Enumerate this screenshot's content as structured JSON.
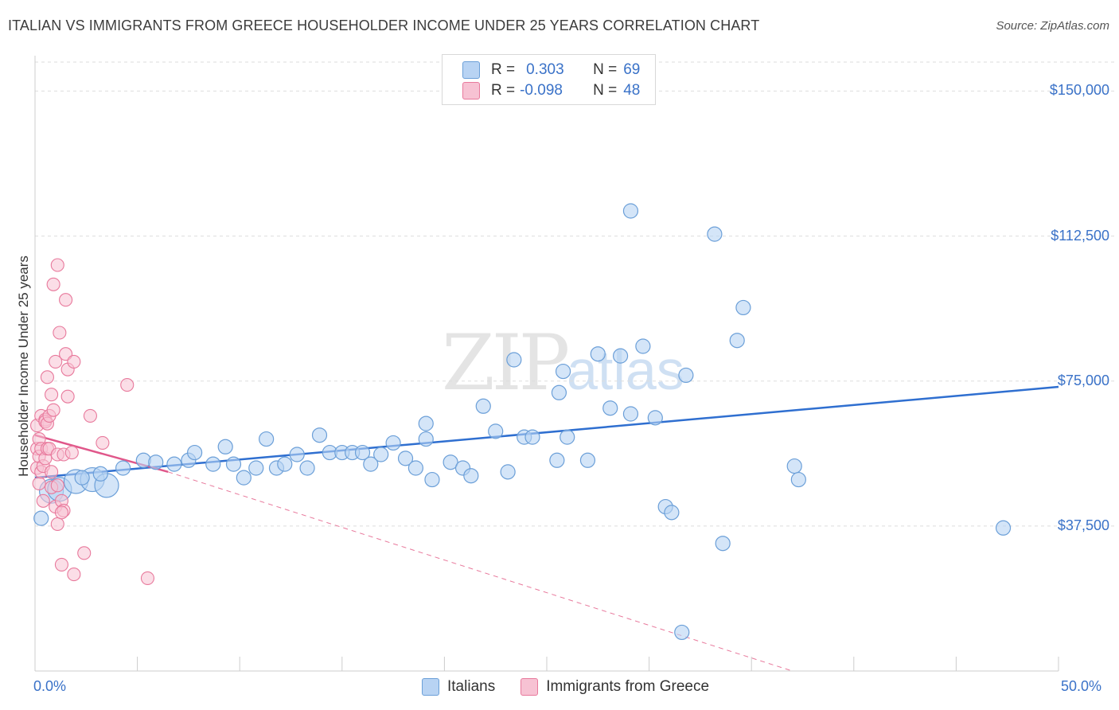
{
  "header": {
    "title": "ITALIAN VS IMMIGRANTS FROM GREECE HOUSEHOLDER INCOME UNDER 25 YEARS CORRELATION CHART",
    "source": "Source: ZipAtlas.com"
  },
  "watermark": {
    "zip": "ZIP",
    "atlas": "atlas"
  },
  "legend": {
    "r_label": "R =",
    "n_label": "N =",
    "italians": {
      "r": "0.303",
      "n": "69"
    },
    "greece": {
      "r": "-0.098",
      "n": "48"
    }
  },
  "colors": {
    "blue_fill": "#b8d3f3",
    "blue_stroke": "#6b9fd8",
    "blue_line": "#2f6fd0",
    "pink_fill": "#f7c2d3",
    "pink_stroke": "#e8799c",
    "pink_line": "#e0578a",
    "axis_text": "#3a72c8",
    "grid": "#dddddd"
  },
  "chart_data": {
    "type": "scatter",
    "title": "ITALIAN VS IMMIGRANTS FROM GREECE HOUSEHOLDER INCOME UNDER 25 YEARS CORRELATION CHART",
    "xlabel": "",
    "ylabel": "Householder Income Under 25 years",
    "xlim": [
      0,
      50
    ],
    "ylim": [
      0,
      157500
    ],
    "x_tick_labels": [
      "0.0%",
      "50.0%"
    ],
    "y_ticks": [
      37500,
      75000,
      112500,
      150000
    ],
    "y_tick_labels": [
      "$37,500",
      "$75,000",
      "$112,500",
      "$150,000"
    ],
    "grid": true,
    "legend_position": "bottom-center",
    "series": [
      {
        "name": "Italians",
        "color": "#6b9fd8",
        "trend": {
          "x": [
            0,
            50
          ],
          "y": [
            50000,
            73500
          ],
          "style": "solid"
        },
        "points": [
          {
            "x": 0.3,
            "y": 39500,
            "s": 1
          },
          {
            "x": 0.8,
            "y": 46500,
            "s": 2
          },
          {
            "x": 1.2,
            "y": 47000,
            "s": 2
          },
          {
            "x": 2.0,
            "y": 49000,
            "s": 2
          },
          {
            "x": 2.8,
            "y": 49500,
            "s": 2
          },
          {
            "x": 3.5,
            "y": 48000,
            "s": 2
          },
          {
            "x": 4.3,
            "y": 52500,
            "s": 1
          },
          {
            "x": 5.3,
            "y": 54500,
            "s": 1
          },
          {
            "x": 5.9,
            "y": 54000,
            "s": 1
          },
          {
            "x": 6.8,
            "y": 53500,
            "s": 1
          },
          {
            "x": 7.5,
            "y": 54500,
            "s": 1
          },
          {
            "x": 7.8,
            "y": 56500,
            "s": 1
          },
          {
            "x": 8.7,
            "y": 53500,
            "s": 1
          },
          {
            "x": 9.3,
            "y": 58000,
            "s": 1
          },
          {
            "x": 9.7,
            "y": 53500,
            "s": 1
          },
          {
            "x": 10.2,
            "y": 50000,
            "s": 1
          },
          {
            "x": 10.8,
            "y": 52500,
            "s": 1
          },
          {
            "x": 11.3,
            "y": 60000,
            "s": 1
          },
          {
            "x": 11.8,
            "y": 52500,
            "s": 1
          },
          {
            "x": 12.2,
            "y": 53500,
            "s": 1
          },
          {
            "x": 12.8,
            "y": 56000,
            "s": 1
          },
          {
            "x": 13.3,
            "y": 52500,
            "s": 1
          },
          {
            "x": 13.9,
            "y": 61000,
            "s": 1
          },
          {
            "x": 14.4,
            "y": 56500,
            "s": 1
          },
          {
            "x": 15.0,
            "y": 56500,
            "s": 1
          },
          {
            "x": 15.5,
            "y": 56500,
            "s": 1
          },
          {
            "x": 16.0,
            "y": 56500,
            "s": 1
          },
          {
            "x": 16.4,
            "y": 53500,
            "s": 1
          },
          {
            "x": 16.9,
            "y": 56000,
            "s": 1
          },
          {
            "x": 17.5,
            "y": 59000,
            "s": 1
          },
          {
            "x": 18.1,
            "y": 55000,
            "s": 1
          },
          {
            "x": 18.6,
            "y": 52500,
            "s": 1
          },
          {
            "x": 19.1,
            "y": 60000,
            "s": 1
          },
          {
            "x": 19.1,
            "y": 64000,
            "s": 1
          },
          {
            "x": 19.4,
            "y": 49500,
            "s": 1
          },
          {
            "x": 20.3,
            "y": 54000,
            "s": 1
          },
          {
            "x": 20.9,
            "y": 52500,
            "s": 1
          },
          {
            "x": 21.3,
            "y": 50500,
            "s": 1
          },
          {
            "x": 21.9,
            "y": 68500,
            "s": 1
          },
          {
            "x": 22.5,
            "y": 62000,
            "s": 1
          },
          {
            "x": 23.1,
            "y": 51500,
            "s": 1
          },
          {
            "x": 23.4,
            "y": 80500,
            "s": 1
          },
          {
            "x": 23.9,
            "y": 60500,
            "s": 1
          },
          {
            "x": 24.3,
            "y": 60500,
            "s": 1
          },
          {
            "x": 25.8,
            "y": 77500,
            "s": 1
          },
          {
            "x": 25.6,
            "y": 72000,
            "s": 1
          },
          {
            "x": 25.5,
            "y": 54500,
            "s": 1
          },
          {
            "x": 26.0,
            "y": 60500,
            "s": 1
          },
          {
            "x": 27.0,
            "y": 54500,
            "s": 1
          },
          {
            "x": 27.5,
            "y": 82000,
            "s": 1
          },
          {
            "x": 28.1,
            "y": 68000,
            "s": 1
          },
          {
            "x": 28.6,
            "y": 81500,
            "s": 1
          },
          {
            "x": 29.1,
            "y": 119000,
            "s": 1
          },
          {
            "x": 29.1,
            "y": 66500,
            "s": 1
          },
          {
            "x": 29.7,
            "y": 84000,
            "s": 1
          },
          {
            "x": 30.3,
            "y": 65500,
            "s": 1
          },
          {
            "x": 30.8,
            "y": 42500,
            "s": 1
          },
          {
            "x": 31.1,
            "y": 41000,
            "s": 1
          },
          {
            "x": 31.6,
            "y": 10000,
            "s": 1
          },
          {
            "x": 31.8,
            "y": 76500,
            "s": 1
          },
          {
            "x": 33.2,
            "y": 113000,
            "s": 1
          },
          {
            "x": 33.6,
            "y": 33000,
            "s": 1
          },
          {
            "x": 34.3,
            "y": 85500,
            "s": 1
          },
          {
            "x": 34.6,
            "y": 94000,
            "s": 1
          },
          {
            "x": 37.1,
            "y": 53000,
            "s": 1
          },
          {
            "x": 37.3,
            "y": 49500,
            "s": 1
          },
          {
            "x": 47.3,
            "y": 37000,
            "s": 1
          },
          {
            "x": 2.3,
            "y": 50000,
            "s": 1
          },
          {
            "x": 3.2,
            "y": 51000,
            "s": 1
          }
        ]
      },
      {
        "name": "Immigrants from Greece",
        "color": "#e8799c",
        "trend": {
          "x": [
            0,
            6.5
          ],
          "y": [
            61000,
            51500
          ],
          "style": "solid",
          "dashed_extension": {
            "x": [
              6.5,
              37.0
            ],
            "y": [
              51500,
              0
            ]
          }
        },
        "points": [
          {
            "x": 0.1,
            "y": 52500
          },
          {
            "x": 0.1,
            "y": 57500
          },
          {
            "x": 0.1,
            "y": 63500
          },
          {
            "x": 0.2,
            "y": 48500
          },
          {
            "x": 0.2,
            "y": 55500
          },
          {
            "x": 0.2,
            "y": 60000
          },
          {
            "x": 0.3,
            "y": 66000
          },
          {
            "x": 0.3,
            "y": 51500
          },
          {
            "x": 0.3,
            "y": 57500
          },
          {
            "x": 0.4,
            "y": 53000
          },
          {
            "x": 0.5,
            "y": 65000
          },
          {
            "x": 0.5,
            "y": 55000
          },
          {
            "x": 0.5,
            "y": 64500
          },
          {
            "x": 0.6,
            "y": 76000
          },
          {
            "x": 0.6,
            "y": 64000
          },
          {
            "x": 0.6,
            "y": 57500
          },
          {
            "x": 0.7,
            "y": 66000
          },
          {
            "x": 0.7,
            "y": 57500
          },
          {
            "x": 0.8,
            "y": 71500
          },
          {
            "x": 0.8,
            "y": 51500
          },
          {
            "x": 0.8,
            "y": 47500
          },
          {
            "x": 0.9,
            "y": 100000
          },
          {
            "x": 0.9,
            "y": 67500
          },
          {
            "x": 1.0,
            "y": 80000
          },
          {
            "x": 1.0,
            "y": 42500
          },
          {
            "x": 1.1,
            "y": 38000
          },
          {
            "x": 1.1,
            "y": 56000
          },
          {
            "x": 1.1,
            "y": 48000
          },
          {
            "x": 1.1,
            "y": 105000
          },
          {
            "x": 1.2,
            "y": 87500
          },
          {
            "x": 1.3,
            "y": 27500
          },
          {
            "x": 1.3,
            "y": 44000
          },
          {
            "x": 1.4,
            "y": 41500
          },
          {
            "x": 1.4,
            "y": 56000
          },
          {
            "x": 1.5,
            "y": 96000
          },
          {
            "x": 1.5,
            "y": 82000
          },
          {
            "x": 1.6,
            "y": 78000
          },
          {
            "x": 1.6,
            "y": 71000
          },
          {
            "x": 1.8,
            "y": 56500
          },
          {
            "x": 1.9,
            "y": 80000
          },
          {
            "x": 1.9,
            "y": 25000
          },
          {
            "x": 2.4,
            "y": 30500
          },
          {
            "x": 2.7,
            "y": 66000
          },
          {
            "x": 3.3,
            "y": 59000
          },
          {
            "x": 4.5,
            "y": 74000
          },
          {
            "x": 5.5,
            "y": 24000
          },
          {
            "x": 0.4,
            "y": 44000
          },
          {
            "x": 1.3,
            "y": 41000
          }
        ]
      }
    ]
  }
}
